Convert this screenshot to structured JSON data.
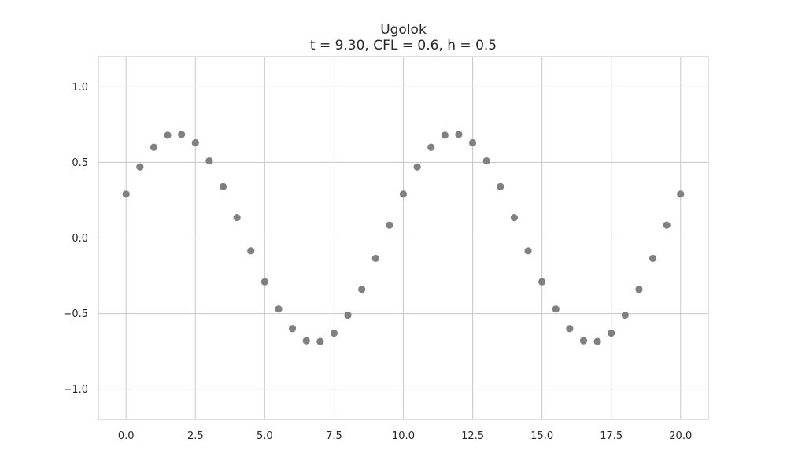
{
  "chart_data": {
    "type": "scatter",
    "title": "Ugolok",
    "subtitle": "t = 9.30, CFL = 0.6, h = 0.5",
    "xlabel": "",
    "ylabel": "",
    "xlim": [
      -1.0,
      21.0
    ],
    "ylim": [
      -1.2,
      1.2
    ],
    "xticks": [
      0.0,
      2.5,
      5.0,
      7.5,
      10.0,
      12.5,
      15.0,
      17.5,
      20.0
    ],
    "xtick_labels": [
      "0.0",
      "2.5",
      "5.0",
      "7.5",
      "10.0",
      "12.5",
      "15.0",
      "17.5",
      "20.0"
    ],
    "yticks": [
      -1.0,
      -0.5,
      0.0,
      0.5,
      1.0
    ],
    "ytick_labels": [
      "−1.0",
      "−0.5",
      "0.0",
      "0.5",
      "1.0"
    ],
    "grid": true,
    "marker_color": "#808080",
    "grid_color": "#cccccc",
    "spine_color": "#cccccc",
    "series": [
      {
        "x": [
          0.0,
          0.5,
          1.0,
          1.5,
          2.0,
          2.5,
          3.0,
          3.5,
          4.0,
          4.5,
          5.0,
          5.5,
          6.0,
          6.5,
          7.0,
          7.5,
          8.0,
          8.5,
          9.0,
          9.5,
          10.0,
          10.5,
          11.0,
          11.5,
          12.0,
          12.5,
          13.0,
          13.5,
          14.0,
          14.5,
          15.0,
          15.5,
          16.0,
          16.5,
          17.0,
          17.5,
          18.0,
          18.5,
          19.0,
          19.5,
          20.0
        ],
        "y": [
          0.29,
          0.47,
          0.6,
          0.68,
          0.685,
          0.63,
          0.51,
          0.34,
          0.135,
          -0.085,
          -0.29,
          -0.47,
          -0.6,
          -0.68,
          -0.685,
          -0.63,
          -0.51,
          -0.34,
          -0.135,
          0.085,
          0.29,
          0.47,
          0.6,
          0.68,
          0.685,
          0.63,
          0.51,
          0.34,
          0.135,
          -0.085,
          -0.29,
          -0.47,
          -0.6,
          -0.68,
          -0.685,
          -0.63,
          -0.51,
          -0.34,
          -0.135,
          0.085,
          0.29
        ]
      }
    ]
  }
}
